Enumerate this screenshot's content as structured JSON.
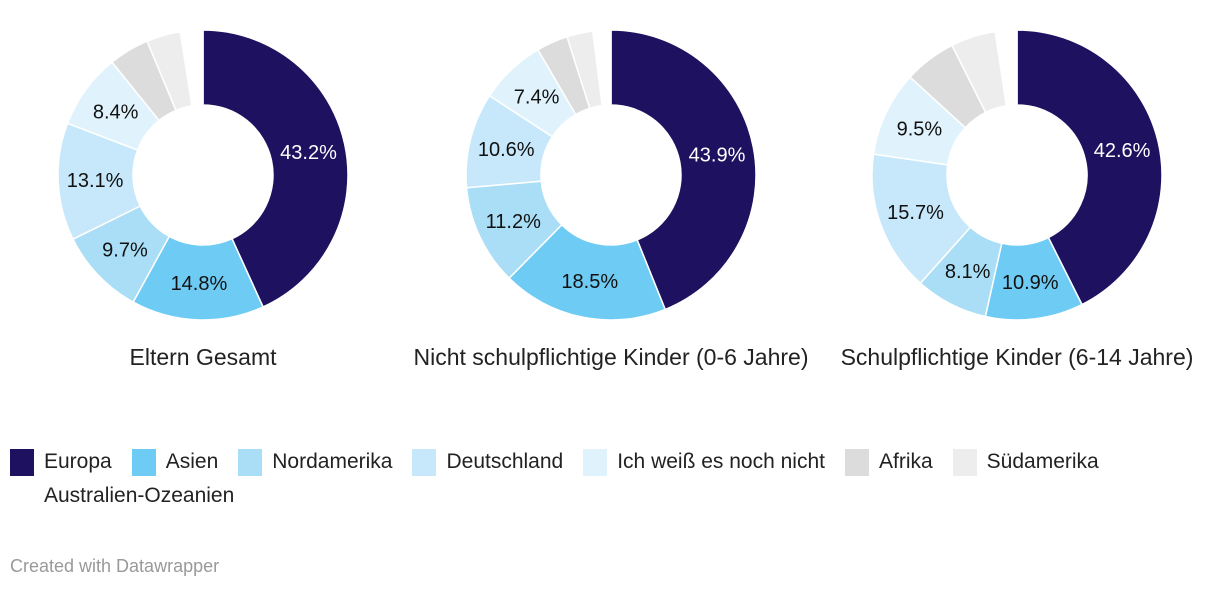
{
  "chart_data": [
    {
      "type": "pie",
      "title": "Eltern Gesamt",
      "values": [
        43.2,
        14.8,
        9.7,
        13.1,
        8.4,
        4.5,
        3.8,
        2.5
      ],
      "labels": [
        "43.2%",
        "14.8%",
        "9.7%",
        "13.1%",
        "8.4%",
        "",
        "",
        ""
      ]
    },
    {
      "type": "pie",
      "title": "Nicht schulpflichtige Kinder (0-6 Jahre)",
      "values": [
        43.9,
        18.5,
        11.2,
        10.6,
        7.4,
        3.5,
        2.9,
        2.0
      ],
      "labels": [
        "43.9%",
        "18.5%",
        "11.2%",
        "10.6%",
        "7.4%",
        "",
        "",
        ""
      ]
    },
    {
      "type": "pie",
      "title": "Schulpflichtige Kinder (6-14 Jahre)",
      "values": [
        42.6,
        10.9,
        8.1,
        15.7,
        9.5,
        5.8,
        5.0,
        2.4
      ],
      "labels": [
        "42.6%",
        "10.9%",
        "8.1%",
        "15.7%",
        "9.5%",
        "",
        "",
        ""
      ]
    }
  ],
  "categories": [
    "Europa",
    "Asien",
    "Nordamerika",
    "Deutschland",
    "Ich weiß es noch nicht",
    "Afrika",
    "Südamerika",
    "Australien-Ozeanien"
  ],
  "colors": [
    "#1d1160",
    "#6ecbf4",
    "#a9def6",
    "#c7e8fa",
    "#e0f3fd",
    "#dcdcdc",
    "#ededed",
    "#ffffff"
  ],
  "footer": "Created with Datawrapper"
}
